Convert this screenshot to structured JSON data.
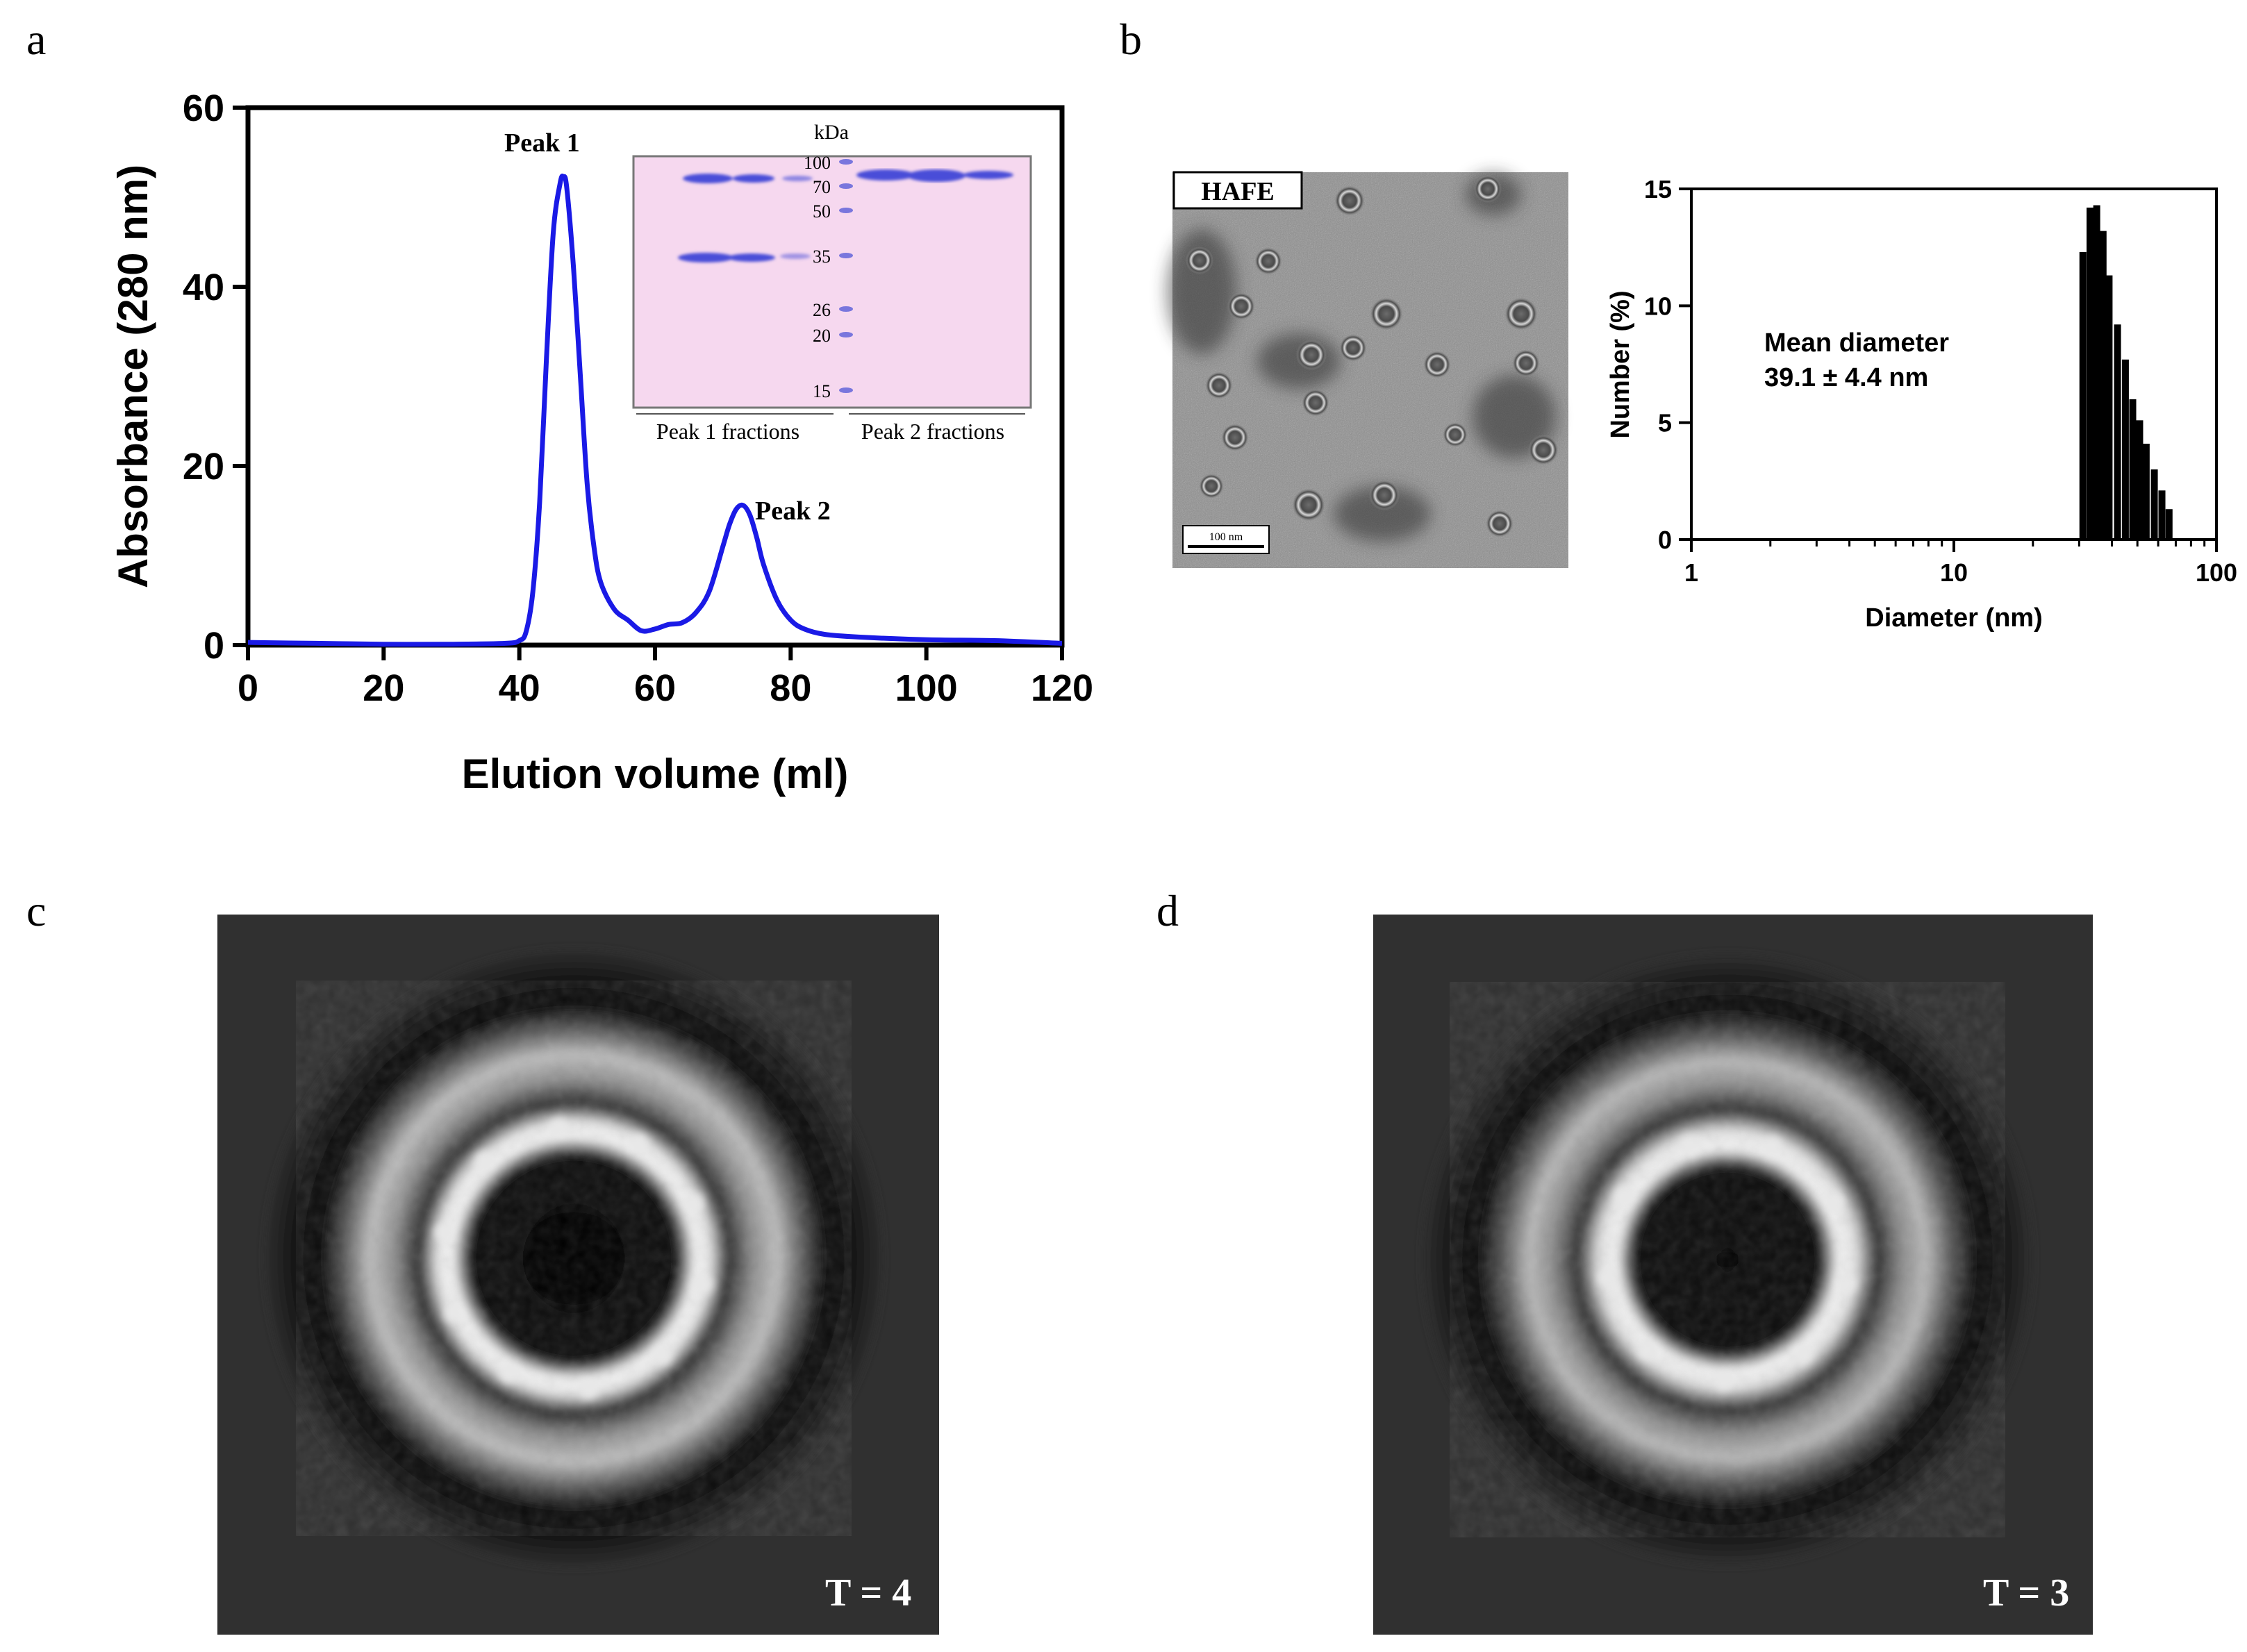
{
  "panel_labels": {
    "a": "a",
    "b": "b",
    "c": "c",
    "d": "d"
  },
  "colors": {
    "trace": "#1a1ae6",
    "gel_bg": "#f7d9ef",
    "band": "#4b4fd6"
  },
  "chart_data": [
    {
      "type": "line",
      "xlabel": "Elution volume  (ml)",
      "ylabel": "Absorbance (280 nm)",
      "xlim": [
        0,
        120
      ],
      "ylim": [
        0,
        60
      ],
      "x_ticks": [
        "0",
        "20",
        "40",
        "60",
        "80",
        "100",
        "120"
      ],
      "y_ticks": [
        "0",
        "20",
        "40",
        "60"
      ],
      "series": [
        {
          "x": [
            0,
            10,
            20,
            30,
            38,
            40,
            41,
            42,
            43,
            44,
            45,
            46,
            46.5,
            47,
            48,
            49,
            50,
            51,
            52,
            54,
            56,
            58,
            60,
            62,
            64,
            66,
            68,
            70,
            71,
            72,
            73,
            74,
            75,
            76,
            78,
            80,
            82,
            85,
            90,
            100,
            110,
            120
          ],
          "y": [
            0.3,
            0.2,
            0.1,
            0.1,
            0.2,
            0.5,
            1.5,
            6,
            16,
            32,
            46,
            51.5,
            52.3,
            51,
            42,
            30,
            18,
            11,
            7,
            4,
            2.8,
            1.6,
            1.8,
            2.3,
            2.5,
            3.6,
            6,
            11,
            13.5,
            15.2,
            15.6,
            14.5,
            12,
            9,
            5,
            2.8,
            1.8,
            1.2,
            0.9,
            0.6,
            0.5,
            0.2
          ]
        }
      ],
      "annotations": [
        "Peak 1",
        "Peak 2"
      ]
    },
    {
      "type": "bar",
      "xlabel": "Diameter  (nm)",
      "ylabel": "Number (%)",
      "xscale": "log",
      "xlim": [
        1,
        100
      ],
      "ylim": [
        0,
        15
      ],
      "x_ticks": [
        "1",
        "10",
        "100"
      ],
      "y_ticks": [
        "0",
        "5",
        "10",
        "15"
      ],
      "x": [
        31,
        33,
        35,
        37,
        39,
        42,
        45,
        48,
        51,
        54,
        58,
        62,
        66
      ],
      "values": [
        12.3,
        14.2,
        14.3,
        13.2,
        11.3,
        9.2,
        7.7,
        6.0,
        5.1,
        4.1,
        3.0,
        2.1,
        1.3
      ],
      "annotation": {
        "line1": "Mean diameter",
        "line2": "39.1 ± 4.4 nm"
      }
    }
  ],
  "gel": {
    "kda_label": "kDa",
    "markers": [
      "100",
      "70",
      "50",
      "35",
      "26",
      "20",
      "15"
    ],
    "caption_left": "Peak 1 fractions",
    "caption_right": "Peak 2 fractions"
  },
  "tem": {
    "label": "HAFE",
    "scalebar": "100 nm"
  },
  "class_averages": [
    {
      "label": "T = 4"
    },
    {
      "label": "T = 3"
    }
  ]
}
